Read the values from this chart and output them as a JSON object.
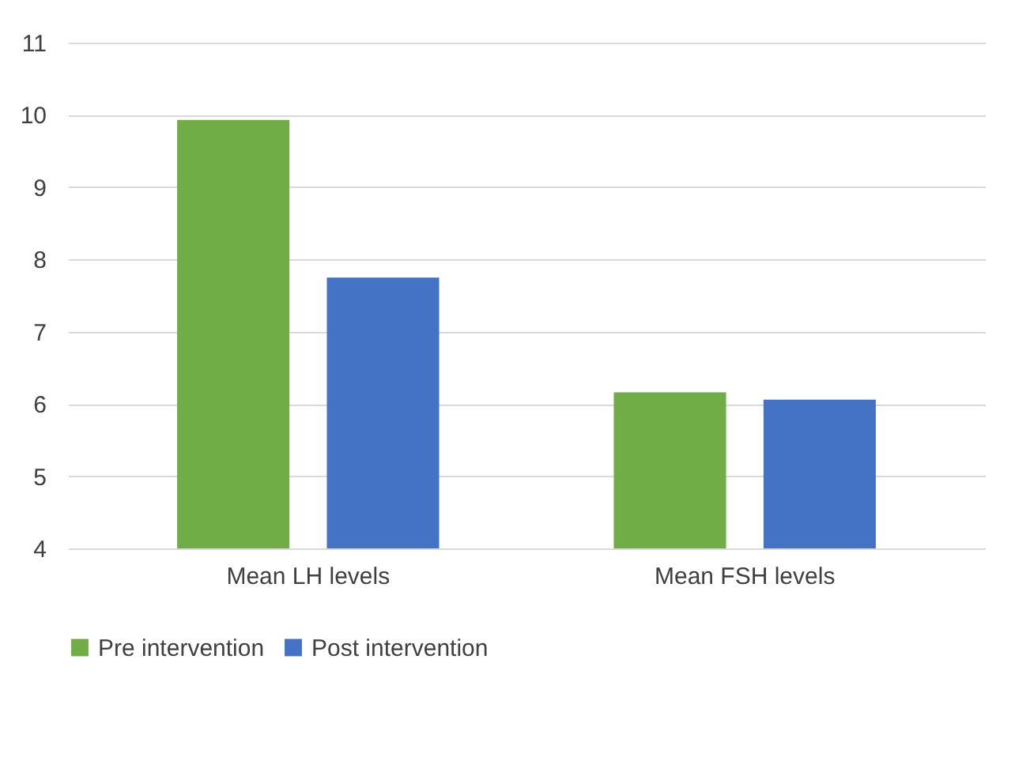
{
  "chart_data": {
    "type": "bar",
    "categories": [
      "Mean LH levels",
      "Mean FSH levels"
    ],
    "series": [
      {
        "name": "Pre intervention",
        "color": "#70ad47",
        "values": [
          9.93,
          6.16
        ]
      },
      {
        "name": "Post intervention",
        "color": "#4472c4",
        "values": [
          7.75,
          6.06
        ]
      }
    ],
    "ylim": [
      4,
      11
    ],
    "yticks": [
      4,
      5,
      6,
      7,
      8,
      9,
      10,
      11
    ],
    "grid": "y",
    "legend": "bottom"
  }
}
